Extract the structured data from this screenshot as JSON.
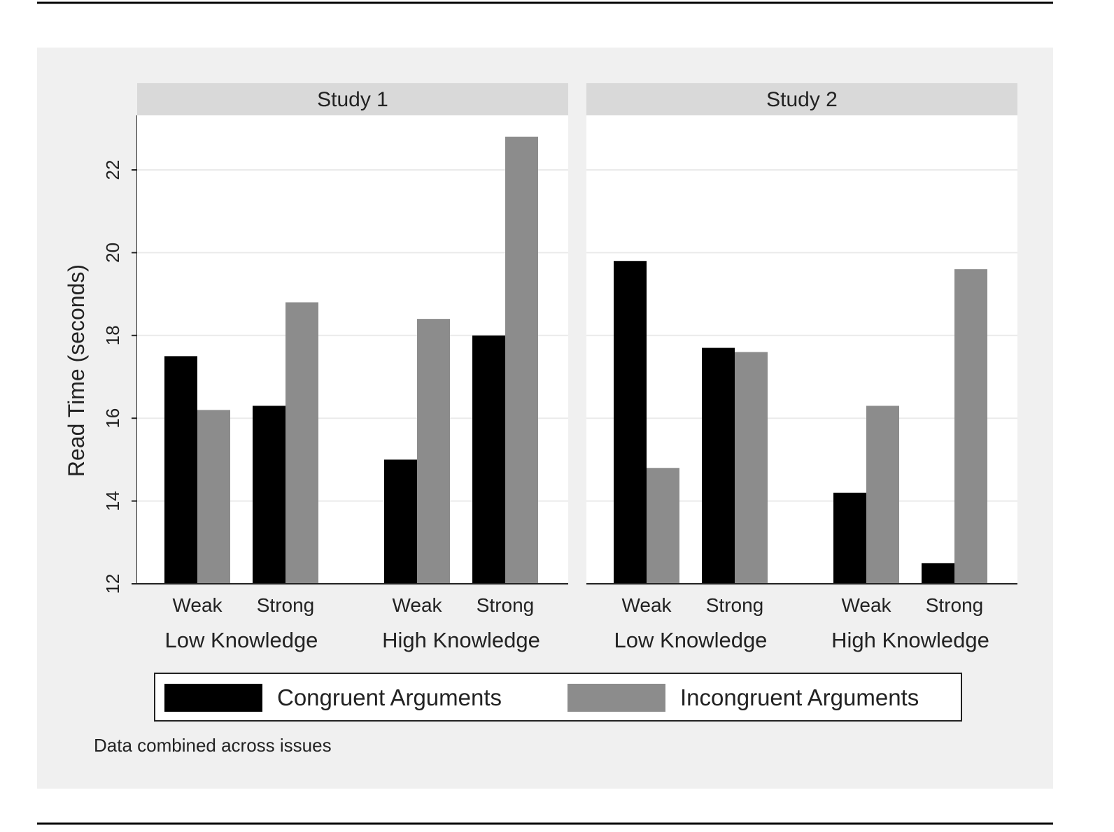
{
  "chart_data": {
    "type": "bar",
    "ylabel": "Read Time (seconds)",
    "ylim": [
      12,
      23
    ],
    "yticks": [
      12,
      14,
      16,
      18,
      20,
      22
    ],
    "grid": true,
    "colors": {
      "congruent": "#000000",
      "incongruent": "#8c8c8c",
      "strip": "#d9d9d9",
      "plot_region": "#f0f0f0"
    },
    "series": [
      {
        "name": "Congruent Arguments"
      },
      {
        "name": "Incongruent Arguments"
      }
    ],
    "panels": [
      {
        "title": "Study 1",
        "groups": [
          {
            "label": "Low Knowledge",
            "categories": [
              {
                "label": "Weak",
                "values": [
                  17.5,
                  16.2
                ]
              },
              {
                "label": "Strong",
                "values": [
                  16.3,
                  18.8
                ]
              }
            ]
          },
          {
            "label": "High Knowledge",
            "categories": [
              {
                "label": "Weak",
                "values": [
                  15.0,
                  18.4
                ]
              },
              {
                "label": "Strong",
                "values": [
                  18.0,
                  22.8
                ]
              }
            ]
          }
        ]
      },
      {
        "title": "Study 2",
        "groups": [
          {
            "label": "Low Knowledge",
            "categories": [
              {
                "label": "Weak",
                "values": [
                  19.8,
                  14.8
                ]
              },
              {
                "label": "Strong",
                "values": [
                  17.7,
                  17.6
                ]
              }
            ]
          },
          {
            "label": "High Knowledge",
            "categories": [
              {
                "label": "Weak",
                "values": [
                  14.2,
                  16.3
                ]
              },
              {
                "label": "Strong",
                "values": [
                  12.5,
                  19.6
                ]
              }
            ]
          }
        ]
      }
    ],
    "legend": {
      "placement": "bottom",
      "entries": [
        "Congruent Arguments",
        "Incongruent Arguments"
      ]
    },
    "note": "Data combined across issues"
  }
}
